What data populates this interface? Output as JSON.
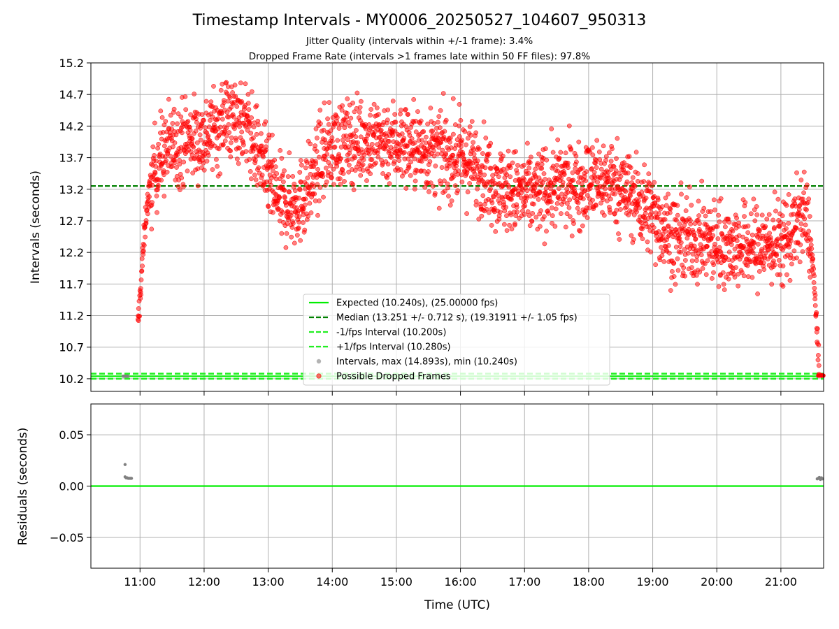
{
  "title": "Timestamp Intervals - MY0006_20250527_104607_950313",
  "subtitle_lines": [
    "Jitter Quality (intervals within +/-1 frame): 3.4%",
    "Dropped Frame Rate (intervals >1 frames late within 50 FF files): 97.8%"
  ],
  "colors": {
    "expected": "#00ee00",
    "median": "#008000",
    "fps_band": "#22ee22",
    "intervals": "#808080",
    "dropped": "#ff0000",
    "grid": "#b0b0b0"
  },
  "chart_data": [
    {
      "type": "scatter",
      "name": "intervals",
      "ylabel": "Intervals (seconds)",
      "ylim": [
        10.0,
        15.2
      ],
      "y_ticks": [
        "10.2",
        "10.7",
        "11.2",
        "11.7",
        "12.2",
        "12.7",
        "13.2",
        "13.7",
        "14.2",
        "14.7",
        "15.2"
      ],
      "xlim": [
        "10:14",
        "21:40"
      ],
      "x_ticks": [
        "11:00",
        "12:00",
        "13:00",
        "14:00",
        "15:00",
        "16:00",
        "17:00",
        "18:00",
        "19:00",
        "20:00",
        "21:00"
      ],
      "grid": true,
      "legend_position": "lower center",
      "reference_lines": {
        "expected": 10.24,
        "median": 13.251,
        "minus_fps": 10.2,
        "plus_fps": 10.28
      },
      "legend": [
        "Expected (10.240s), (25.00000 fps)",
        "Median (13.251 +/- 0.712 s), (19.31911 +/- 1.05 fps)",
        "-1/fps Interval (10.200s)",
        "+1/fps Interval (10.280s)",
        "Intervals, max (14.893s), min (10.240s)",
        "Possible Dropped Frames"
      ],
      "dropped_trend": [
        [
          "10:58",
          11.0
        ],
        [
          "11:02",
          12.0
        ],
        [
          "11:06",
          12.9
        ],
        [
          "11:12",
          13.4
        ],
        [
          "11:18",
          13.7
        ],
        [
          "11:30",
          13.9
        ],
        [
          "11:45",
          14.0
        ],
        [
          "12:00",
          14.0
        ],
        [
          "12:10",
          14.2
        ],
        [
          "12:20",
          14.3
        ],
        [
          "12:30",
          14.35
        ],
        [
          "12:40",
          14.2
        ],
        [
          "12:50",
          13.8
        ],
        [
          "13:00",
          13.4
        ],
        [
          "13:10",
          13.0
        ],
        [
          "13:20",
          12.95
        ],
        [
          "13:30",
          13.0
        ],
        [
          "13:40",
          13.3
        ],
        [
          "13:50",
          13.7
        ],
        [
          "14:00",
          13.9
        ],
        [
          "14:30",
          14.0
        ],
        [
          "15:00",
          13.95
        ],
        [
          "15:30",
          13.8
        ],
        [
          "16:00",
          13.7
        ],
        [
          "16:20",
          13.5
        ],
        [
          "16:40",
          13.2
        ],
        [
          "17:00",
          13.1
        ],
        [
          "17:30",
          13.25
        ],
        [
          "18:00",
          13.3
        ],
        [
          "18:20",
          13.35
        ],
        [
          "18:40",
          13.1
        ],
        [
          "19:00",
          12.8
        ],
        [
          "19:20",
          12.4
        ],
        [
          "19:40",
          12.4
        ],
        [
          "20:00",
          12.35
        ],
        [
          "20:20",
          12.3
        ],
        [
          "20:40",
          12.3
        ],
        [
          "21:00",
          12.35
        ],
        [
          "21:10",
          12.5
        ],
        [
          "21:20",
          12.8
        ],
        [
          "21:25",
          12.7
        ],
        [
          "21:30",
          12.0
        ],
        [
          "21:33",
          11.2
        ],
        [
          "21:35",
          10.5
        ],
        [
          "21:36",
          10.25
        ]
      ],
      "dropped_spread": 0.33,
      "dropped_count": 2600,
      "interval_points_at_expected": [
        [
          "10:44",
          "10:49"
        ],
        [
          "21:34",
          "21:40"
        ]
      ]
    },
    {
      "type": "scatter",
      "name": "residuals",
      "ylabel": "Residuals (seconds)",
      "xlabel": "Time (UTC)",
      "ylim": [
        -0.08,
        0.08
      ],
      "y_ticks": [
        "0.05",
        "0.00",
        "−0.05"
      ],
      "y_tick_values": [
        0.05,
        0.0,
        -0.05
      ],
      "zero_line": 0.0,
      "points": [
        [
          "10:46",
          0.021
        ],
        [
          "10:46",
          0.009
        ],
        [
          "10:47",
          0.008
        ],
        [
          "10:48",
          0.008
        ],
        [
          "10:49",
          0.0075
        ],
        [
          "10:50",
          0.0075
        ],
        [
          "10:51",
          0.0075
        ],
        [
          "10:52",
          0.0075
        ],
        [
          "21:34",
          0.007
        ],
        [
          "21:35",
          0.0075
        ],
        [
          "21:36",
          0.0085
        ],
        [
          "21:37",
          0.0065
        ],
        [
          "21:38",
          0.008
        ],
        [
          "21:39",
          0.007
        ]
      ]
    }
  ]
}
